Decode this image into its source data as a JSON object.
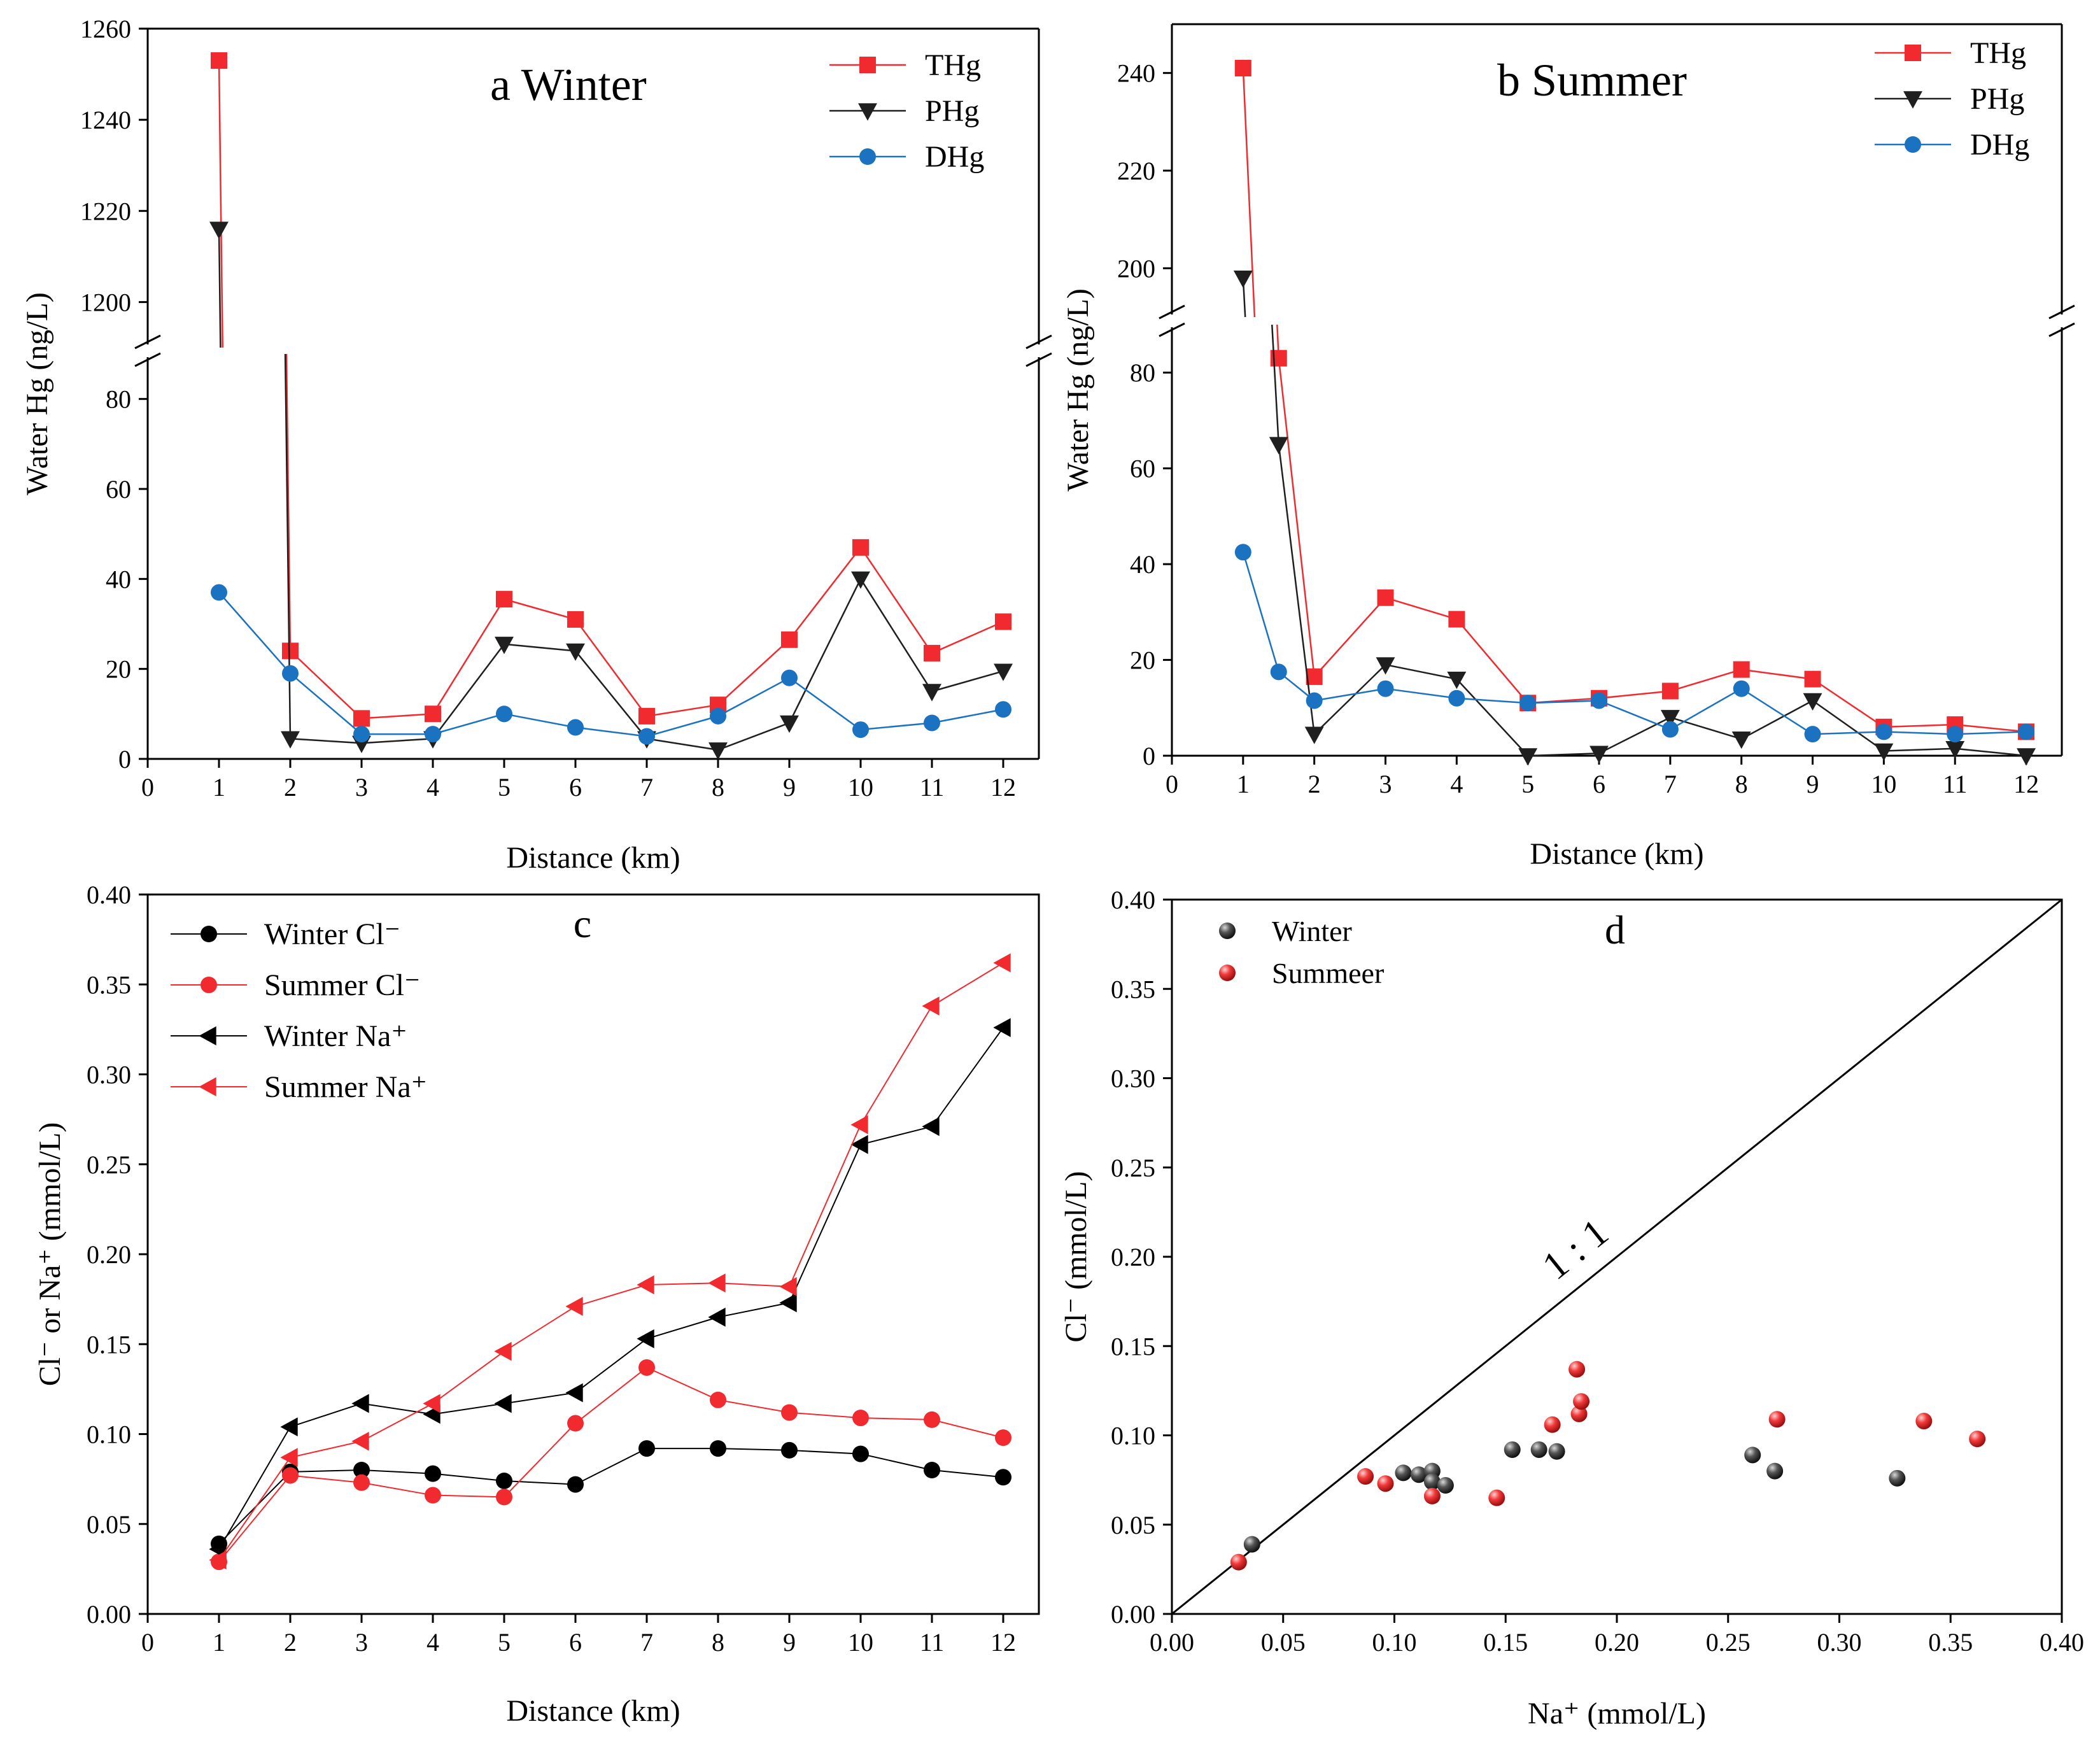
{
  "colors": {
    "red": "#f02a2e",
    "black": "#1f1f1f",
    "blue": "#1a72c0"
  },
  "chart_data": [
    {
      "panel": "a",
      "type": "line",
      "title": "a Winter",
      "xlabel": "Distance (km)",
      "ylabel": "Water Hg (ng/L)",
      "xlim": [
        0,
        12.5
      ],
      "x_ticks": [
        "0",
        "1",
        "2",
        "3",
        "4",
        "5",
        "6",
        "7",
        "8",
        "9",
        "10",
        "11",
        "12"
      ],
      "y_lower_range": [
        0,
        90
      ],
      "y_upper_range": [
        1190,
        1260
      ],
      "y_lower_ticks": [
        "0",
        "20",
        "40",
        "60",
        "80"
      ],
      "y_upper_ticks": [
        "1200",
        "1220",
        "1240",
        "1260"
      ],
      "series": [
        {
          "name": "THg",
          "marker": "square",
          "color": "#f02a2e",
          "x": [
            1,
            2,
            3,
            4,
            5,
            6,
            7,
            8,
            9,
            10,
            11,
            12
          ],
          "y": [
            1253,
            24,
            9,
            10,
            35.5,
            31,
            9.5,
            12,
            26.5,
            47,
            23.5,
            30.5
          ]
        },
        {
          "name": "PHg",
          "marker": "triangle-down",
          "color": "#1f1f1f",
          "x": [
            1,
            2,
            3,
            4,
            5,
            6,
            7,
            8,
            9,
            10,
            11,
            12
          ],
          "y": [
            1216,
            4.5,
            3.5,
            4.5,
            25.5,
            24,
            4.5,
            2,
            8,
            40,
            15,
            19.5
          ]
        },
        {
          "name": "DHg",
          "marker": "circle",
          "color": "#1a72c0",
          "x": [
            1,
            2,
            3,
            4,
            5,
            6,
            7,
            8,
            9,
            10,
            11,
            12
          ],
          "y": [
            37,
            19,
            5.5,
            5.5,
            10,
            7,
            5,
            9.5,
            18,
            6.5,
            8,
            11
          ]
        }
      ]
    },
    {
      "panel": "b",
      "type": "line",
      "title": "b Summer",
      "xlabel": "Distance (km)",
      "ylabel": "Water Hg (ng/L)",
      "xlim": [
        0,
        12.5
      ],
      "x_ticks": [
        "0",
        "1",
        "2",
        "3",
        "4",
        "5",
        "6",
        "7",
        "8",
        "9",
        "10",
        "11",
        "12"
      ],
      "y_lower_range": [
        0,
        90
      ],
      "y_upper_range": [
        190,
        250
      ],
      "y_lower_ticks": [
        "0",
        "20",
        "40",
        "60",
        "80"
      ],
      "y_upper_ticks": [
        "200",
        "220",
        "240"
      ],
      "series": [
        {
          "name": "THg",
          "marker": "square",
          "color": "#f02a2e",
          "x": [
            1,
            1.5,
            2,
            3,
            4,
            5,
            6,
            7,
            8,
            9,
            10,
            11,
            12
          ],
          "y": [
            241,
            83,
            16.5,
            33,
            28.5,
            11,
            12,
            13.5,
            18,
            16,
            6,
            6.5,
            5
          ]
        },
        {
          "name": "PHg",
          "marker": "triangle-down",
          "color": "#1f1f1f",
          "x": [
            1,
            1.5,
            2,
            3,
            4,
            5,
            6,
            7,
            8,
            9,
            10,
            11,
            12
          ],
          "y": [
            198,
            65,
            4.5,
            19,
            16,
            0,
            0.5,
            8,
            3.5,
            11.5,
            1,
            1.5,
            0
          ]
        },
        {
          "name": "DHg",
          "marker": "circle",
          "color": "#1a72c0",
          "x": [
            1,
            1.5,
            2,
            3,
            4,
            5,
            6,
            7,
            8,
            9,
            10,
            11,
            12
          ],
          "y": [
            42.5,
            17.5,
            11.5,
            14,
            12,
            11,
            11.5,
            5.5,
            14,
            4.5,
            5,
            4.5,
            5
          ]
        }
      ]
    },
    {
      "panel": "c",
      "type": "line",
      "title": "c",
      "xlabel": "Distance (km)",
      "ylabel": "Cl⁻ or Na⁺ (mmol/L)",
      "xlim": [
        0,
        12.5
      ],
      "ylim": [
        0,
        0.4
      ],
      "x_ticks": [
        "0",
        "1",
        "2",
        "3",
        "4",
        "5",
        "6",
        "7",
        "8",
        "9",
        "10",
        "11",
        "12"
      ],
      "y_ticks": [
        "0.00",
        "0.05",
        "0.10",
        "0.15",
        "0.20",
        "0.25",
        "0.30",
        "0.35",
        "0.40"
      ],
      "series": [
        {
          "name": "Winter Cl⁻",
          "marker": "circle",
          "color": "#000000",
          "x": [
            1,
            2,
            3,
            4,
            5,
            6,
            7,
            8,
            9,
            10,
            11,
            12
          ],
          "y": [
            0.039,
            0.079,
            0.08,
            0.078,
            0.074,
            0.072,
            0.092,
            0.092,
            0.091,
            0.089,
            0.08,
            0.076
          ]
        },
        {
          "name": "Summer Cl⁻",
          "marker": "circle",
          "color": "#f02a2e",
          "x": [
            1,
            2,
            3,
            4,
            5,
            6,
            7,
            8,
            9,
            10,
            11,
            12
          ],
          "y": [
            0.029,
            0.077,
            0.073,
            0.066,
            0.065,
            0.106,
            0.137,
            0.119,
            0.112,
            0.109,
            0.108,
            0.098
          ]
        },
        {
          "name": "Winter Na⁺",
          "marker": "triangle-left",
          "color": "#000000",
          "x": [
            1,
            2,
            3,
            4,
            5,
            6,
            7,
            8,
            9,
            10,
            11,
            12
          ],
          "y": [
            0.036,
            0.104,
            0.117,
            0.111,
            0.117,
            0.123,
            0.153,
            0.165,
            0.173,
            0.261,
            0.271,
            0.326
          ]
        },
        {
          "name": "Summer Na⁺",
          "marker": "triangle-left",
          "color": "#f02a2e",
          "x": [
            1,
            2,
            3,
            4,
            5,
            6,
            7,
            8,
            9,
            10,
            11,
            12
          ],
          "y": [
            0.03,
            0.087,
            0.096,
            0.117,
            0.146,
            0.171,
            0.183,
            0.184,
            0.182,
            0.272,
            0.338,
            0.362
          ]
        }
      ]
    },
    {
      "panel": "d",
      "type": "scatter",
      "title": "d",
      "xlabel": "Na⁺ (mmol/L)",
      "ylabel": "Cl⁻ (mmol/L)",
      "xlim": [
        0,
        0.4
      ],
      "ylim": [
        0,
        0.4
      ],
      "x_ticks": [
        "0.00",
        "0.05",
        "0.10",
        "0.15",
        "0.20",
        "0.25",
        "0.30",
        "0.35",
        "0.40"
      ],
      "y_ticks": [
        "0.00",
        "0.05",
        "0.10",
        "0.15",
        "0.20",
        "0.25",
        "0.30",
        "0.35",
        "0.40"
      ],
      "annotation": "1 : 1",
      "series": [
        {
          "name": "Winter",
          "marker": "sphere",
          "color": "#1f1f1f",
          "x": [
            0.036,
            0.104,
            0.111,
            0.117,
            0.117,
            0.123,
            0.153,
            0.165,
            0.173,
            0.261,
            0.271,
            0.326
          ],
          "y": [
            0.039,
            0.079,
            0.078,
            0.08,
            0.074,
            0.072,
            0.092,
            0.092,
            0.091,
            0.089,
            0.08,
            0.076
          ]
        },
        {
          "name": "Summeer",
          "marker": "sphere",
          "color": "#f02a2e",
          "x": [
            0.03,
            0.087,
            0.096,
            0.117,
            0.146,
            0.171,
            0.182,
            0.183,
            0.184,
            0.272,
            0.338,
            0.362
          ],
          "y": [
            0.029,
            0.077,
            0.073,
            0.066,
            0.065,
            0.106,
            0.137,
            0.112,
            0.119,
            0.109,
            0.108,
            0.098
          ]
        }
      ]
    }
  ]
}
